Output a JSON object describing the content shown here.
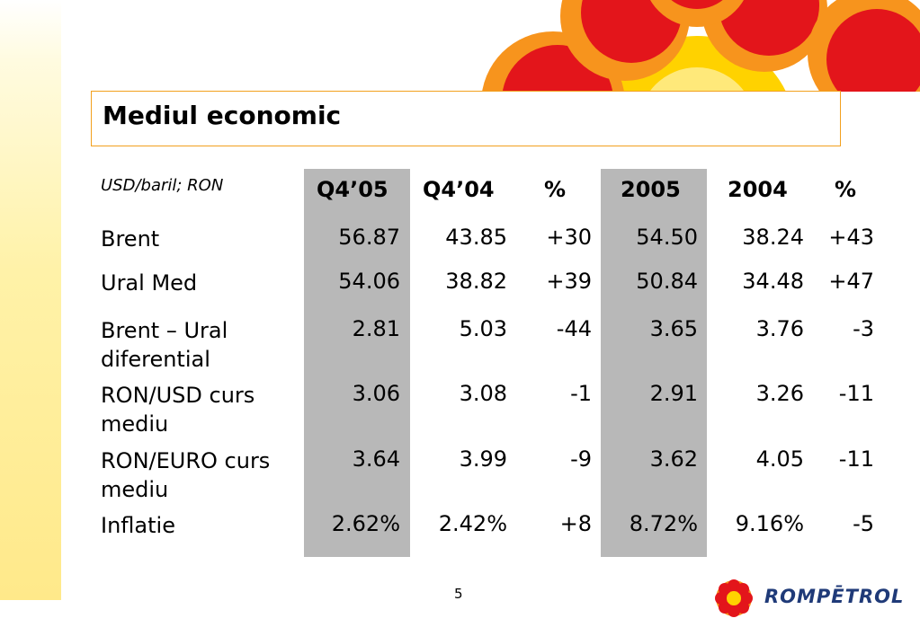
{
  "title": "Mediul economic",
  "units": "USD/baril; RON",
  "table": {
    "headers": [
      "Q4’05",
      "Q4’04",
      "%",
      "2005",
      "2004",
      "%"
    ],
    "rows": [
      {
        "label": "Brent",
        "values": [
          "56.87",
          "43.85",
          "+30",
          "54.50",
          "38.24",
          "+43"
        ]
      },
      {
        "label": "Ural Med",
        "values": [
          "54.06",
          "38.82",
          "+39",
          "50.84",
          "34.48",
          "+47"
        ]
      },
      {
        "label": "Brent – Ural diferential",
        "values": [
          "2.81",
          "5.03",
          "-44",
          "3.65",
          "3.76",
          "-3"
        ]
      },
      {
        "label": "RON/USD curs mediu",
        "values": [
          "3.06",
          "3.08",
          "-1",
          "2.91",
          "3.26",
          "-11"
        ]
      },
      {
        "label": "RON/EURO curs mediu",
        "values": [
          "3.64",
          "3.99",
          "-9",
          "3.62",
          "4.05",
          "-11"
        ]
      },
      {
        "label": "Inflatie",
        "values": [
          "2.62%",
          "2.42%",
          "+8",
          "8.72%",
          "9.16%",
          "-5"
        ]
      }
    ]
  },
  "page_number": "5",
  "logo": {
    "text": "ROMPĒTROL",
    "icon": "sun-flower-icon"
  },
  "colors": {
    "red": "#e3151b",
    "orange": "#f7941d",
    "yellow": "#ffd200",
    "shade": "#b8b8b8",
    "brand_blue": "#1f3a78"
  }
}
